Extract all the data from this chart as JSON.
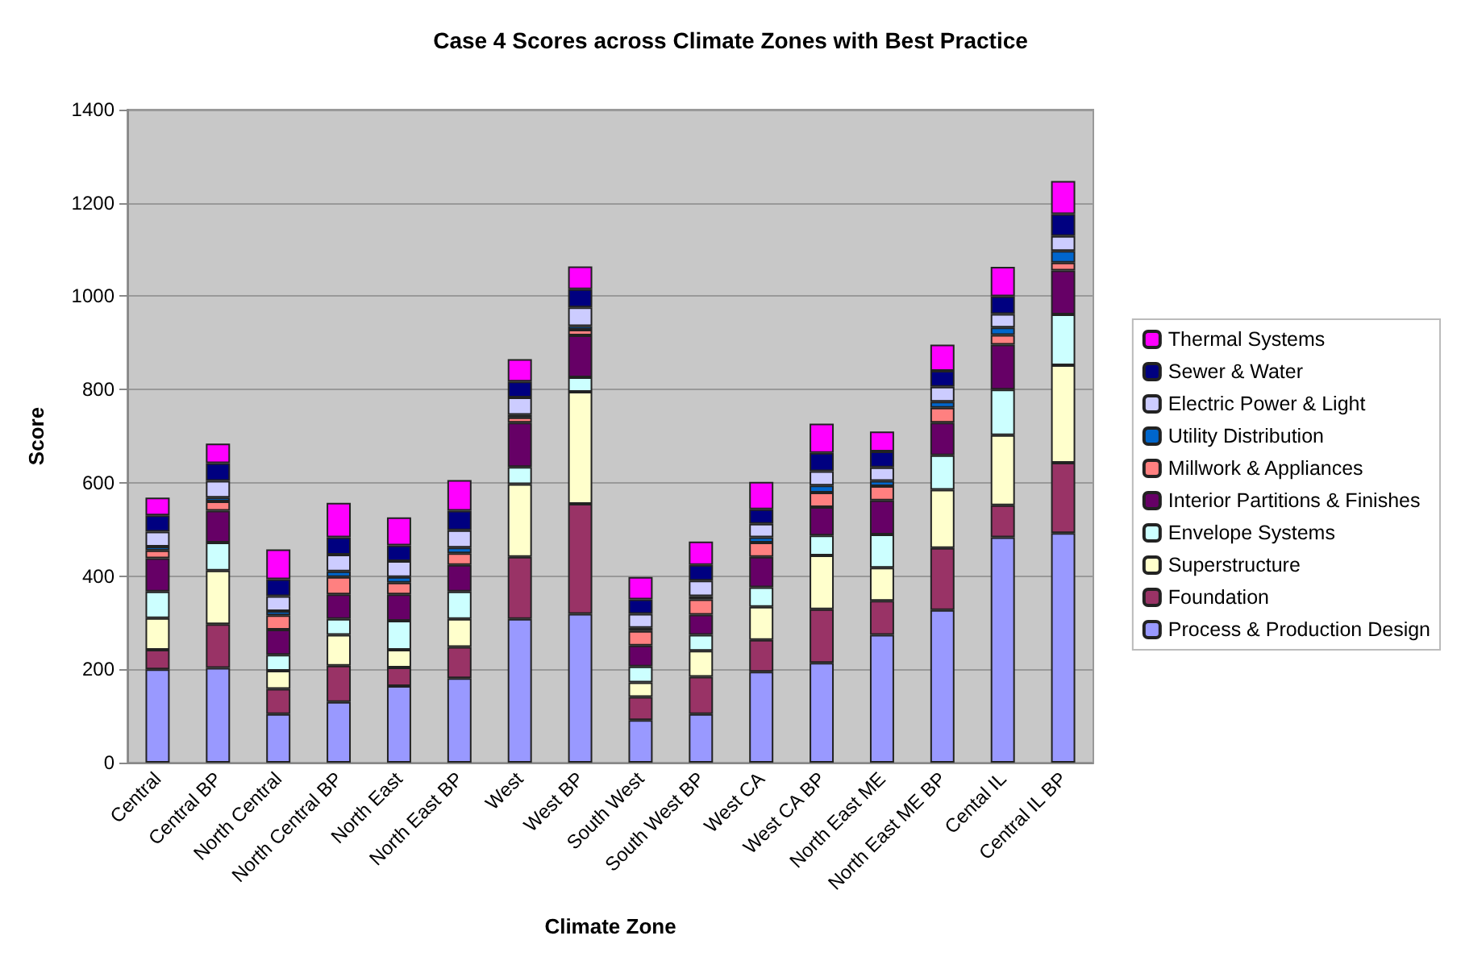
{
  "chart_data": {
    "type": "bar",
    "title": "Case 4 Scores across Climate Zones with Best Practice",
    "xlabel": "Climate Zone",
    "ylabel": "Score",
    "categories": [
      "Central",
      "Central BP",
      "North Central",
      "North Central BP",
      "North East",
      "North East BP",
      "West",
      "West BP",
      "South West",
      "South West BP",
      "West CA",
      "West CA BP",
      "North East ME",
      "North East ME BP",
      "Cental IL",
      "Central IL BP"
    ],
    "stacked": true,
    "ylim": [
      0,
      1400
    ],
    "yticks": [
      0,
      200,
      400,
      600,
      800,
      1000,
      1200,
      1400
    ],
    "grid": "y",
    "legend": "right",
    "series": [
      {
        "name": "Process & Production Design",
        "color": "#9999ff",
        "values": [
          200,
          203,
          104,
          130,
          164,
          181,
          308,
          319,
          91,
          104,
          195,
          214,
          274,
          327,
          483,
          492
        ]
      },
      {
        "name": "Foundation",
        "color": "#993366",
        "values": [
          42,
          94,
          54,
          78,
          40,
          67,
          133,
          236,
          50,
          80,
          68,
          115,
          73,
          133,
          69,
          151
        ]
      },
      {
        "name": "Superstructure",
        "color": "#ffffcc",
        "values": [
          68,
          115,
          39,
          66,
          38,
          60,
          156,
          240,
          31,
          56,
          71,
          115,
          71,
          125,
          150,
          209
        ]
      },
      {
        "name": "Envelope Systems",
        "color": "#ccffff",
        "values": [
          57,
          60,
          34,
          34,
          62,
          59,
          37,
          31,
          34,
          34,
          42,
          43,
          71,
          74,
          98,
          109
        ]
      },
      {
        "name": "Interior Partitions & Finishes",
        "color": "#660066",
        "values": [
          71,
          68,
          54,
          53,
          57,
          57,
          95,
          90,
          45,
          43,
          65,
          61,
          73,
          70,
          96,
          94
        ]
      },
      {
        "name": "Millwork & Appliances",
        "color": "#ff8080",
        "values": [
          17,
          20,
          31,
          37,
          25,
          25,
          11,
          12,
          31,
          33,
          31,
          31,
          31,
          32,
          21,
          17
        ]
      },
      {
        "name": "Utility Distribution",
        "color": "#0066cc",
        "values": [
          8,
          8,
          9,
          12,
          12,
          12,
          6,
          8,
          7,
          7,
          11,
          15,
          11,
          13,
          16,
          25
        ]
      },
      {
        "name": "Electric Power & Light",
        "color": "#ccccff",
        "values": [
          32,
          36,
          32,
          36,
          34,
          37,
          37,
          40,
          30,
          33,
          29,
          31,
          29,
          32,
          29,
          32
        ]
      },
      {
        "name": "Sewer & Water",
        "color": "#000080",
        "values": [
          35,
          38,
          36,
          37,
          34,
          42,
          34,
          39,
          31,
          34,
          31,
          39,
          34,
          34,
          38,
          47
        ]
      },
      {
        "name": "Thermal Systems",
        "color": "#ff00ff",
        "values": [
          38,
          42,
          64,
          74,
          60,
          66,
          48,
          49,
          48,
          50,
          59,
          63,
          43,
          56,
          63,
          71
        ]
      }
    ]
  }
}
